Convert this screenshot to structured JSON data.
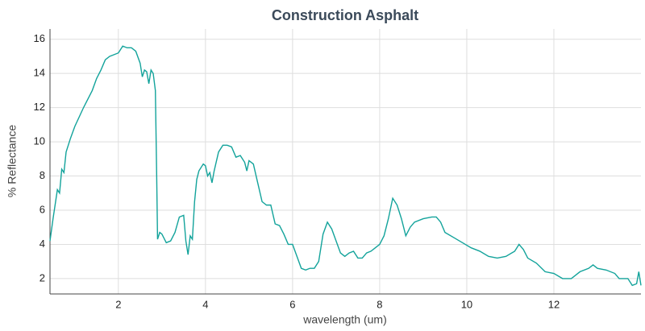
{
  "chart_data": {
    "type": "line",
    "title": "Construction Asphalt",
    "x_label": "wavelength (um)",
    "y_label": "% Reflectance",
    "xlim": [
      0.43,
      14.0
    ],
    "ylim": [
      1.1,
      16.6
    ],
    "xticks": [
      2,
      4,
      6,
      8,
      10,
      12
    ],
    "yticks": [
      2,
      4,
      6,
      8,
      10,
      12,
      14,
      16
    ],
    "grid": true,
    "series": [
      {
        "color": "#13a39b",
        "x": [
          0.43,
          0.5,
          0.6,
          0.65,
          0.7,
          0.75,
          0.8,
          0.9,
          1.0,
          1.2,
          1.4,
          1.5,
          1.6,
          1.7,
          1.8,
          1.9,
          2.0,
          2.05,
          2.1,
          2.2,
          2.3,
          2.4,
          2.5,
          2.55,
          2.6,
          2.65,
          2.7,
          2.75,
          2.8,
          2.85,
          2.88,
          2.9,
          2.95,
          3.0,
          3.1,
          3.2,
          3.3,
          3.4,
          3.5,
          3.55,
          3.6,
          3.65,
          3.7,
          3.75,
          3.8,
          3.85,
          3.95,
          4.0,
          4.05,
          4.1,
          4.15,
          4.2,
          4.3,
          4.4,
          4.5,
          4.6,
          4.7,
          4.8,
          4.9,
          4.95,
          5.0,
          5.1,
          5.2,
          5.3,
          5.4,
          5.5,
          5.6,
          5.7,
          5.8,
          5.9,
          6.0,
          6.1,
          6.2,
          6.3,
          6.4,
          6.5,
          6.6,
          6.7,
          6.8,
          6.9,
          7.0,
          7.1,
          7.2,
          7.3,
          7.4,
          7.5,
          7.6,
          7.7,
          7.8,
          7.9,
          8.0,
          8.1,
          8.2,
          8.3,
          8.4,
          8.5,
          8.6,
          8.7,
          8.8,
          9.0,
          9.2,
          9.3,
          9.4,
          9.5,
          9.7,
          9.9,
          10.1,
          10.3,
          10.5,
          10.7,
          10.9,
          11.1,
          11.2,
          11.3,
          11.4,
          11.6,
          11.8,
          12.0,
          12.2,
          12.4,
          12.6,
          12.8,
          12.9,
          13.0,
          13.2,
          13.4,
          13.5,
          13.7,
          13.8,
          13.9,
          13.95,
          14.0
        ],
        "values": [
          4.2,
          5.5,
          7.2,
          7.0,
          8.4,
          8.2,
          9.4,
          10.2,
          10.9,
          12.0,
          13.0,
          13.7,
          14.2,
          14.8,
          15.0,
          15.1,
          15.2,
          15.4,
          15.6,
          15.5,
          15.5,
          15.3,
          14.6,
          13.8,
          14.2,
          14.1,
          13.4,
          14.2,
          14.0,
          13.0,
          8.0,
          4.3,
          4.7,
          4.6,
          4.1,
          4.2,
          4.7,
          5.6,
          5.7,
          4.2,
          3.4,
          4.5,
          4.3,
          6.5,
          7.8,
          8.3,
          8.7,
          8.6,
          8.0,
          8.2,
          7.6,
          8.3,
          9.4,
          9.8,
          9.8,
          9.7,
          9.1,
          9.2,
          8.8,
          8.3,
          8.9,
          8.7,
          7.6,
          6.5,
          6.3,
          6.3,
          5.2,
          5.1,
          4.6,
          4.0,
          4.0,
          3.3,
          2.6,
          2.5,
          2.6,
          2.6,
          3.0,
          4.6,
          5.3,
          4.9,
          4.2,
          3.5,
          3.3,
          3.5,
          3.6,
          3.2,
          3.2,
          3.5,
          3.6,
          3.8,
          4.0,
          4.5,
          5.5,
          6.7,
          6.3,
          5.5,
          4.5,
          5.0,
          5.3,
          5.5,
          5.6,
          5.6,
          5.3,
          4.7,
          4.4,
          4.1,
          3.8,
          3.6,
          3.3,
          3.2,
          3.3,
          3.6,
          4.0,
          3.7,
          3.2,
          2.9,
          2.4,
          2.3,
          2.0,
          2.0,
          2.4,
          2.6,
          2.8,
          2.6,
          2.5,
          2.3,
          2.0,
          2.0,
          1.6,
          1.7,
          2.4,
          1.6
        ]
      }
    ]
  }
}
